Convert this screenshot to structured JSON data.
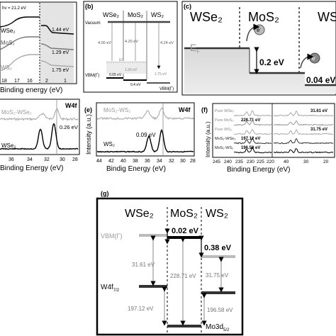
{
  "panel_a": {
    "tag": "hv = 21.2 eV",
    "xlabel": "Binding energy (eV)",
    "ticks": [
      "18",
      "17",
      "16",
      "2",
      "1"
    ],
    "curve_labels": [
      "WSe₂",
      "MoS₂",
      "WS₂"
    ],
    "values": [
      "1.44 eV",
      "1.29 eV",
      "1.75 eV"
    ]
  },
  "panel_b": {
    "label": "(b)",
    "cols": [
      "WSe₂",
      "MoS₂",
      "WS₂"
    ],
    "vacuum": "Vacuum",
    "wf": [
      "4.00 eV",
      "4.20 eV",
      "4.24 eV"
    ],
    "vbm_left": "VBM(Γ)",
    "vbm_right": "VBM(Γ)",
    "ef": "Ef",
    "offsets": [
      "0.05 eV",
      "0.4 eV"
    ],
    "vb_values": [
      "1.30 eV",
      "1.75 eV"
    ]
  },
  "panel_c": {
    "label": "(c)",
    "cols": [
      "WSe₂",
      "MoS₂",
      "WS₂"
    ],
    "ef": "E",
    "ef_sub": "F",
    "electron": "e",
    "electron_sup": "-",
    "offsets": [
      "0.2 eV",
      "0.04 eV"
    ]
  },
  "panel_d": {
    "title": "W4f",
    "top_label": "MoS₂-WSe₂",
    "bottom_label": "WSe₂",
    "shift": "0.26 eV",
    "xlabel": "Binding Energy (eV)",
    "ticks": [
      "36",
      "34",
      "32",
      "30",
      "28"
    ]
  },
  "panel_e": {
    "label": "(e)",
    "title": "W4f",
    "top_label": "MoS₂-WS₂",
    "bottom_label": "WS₂",
    "shift": "0.09 eV",
    "ylabel": "Intensity (a.u.)",
    "xlabel": "Bindig Energy (eV)",
    "ticks": [
      "44",
      "42",
      "40",
      "38",
      "36",
      "34",
      "32",
      "30",
      "28"
    ]
  },
  "panel_f": {
    "label": "(f)",
    "ylabel": "Intensity (a.u.)",
    "xlabel": "Binding Energy (eV)",
    "rows": [
      {
        "name": "Pure WSe₂",
        "value": "31.61 eV"
      },
      {
        "name": "Pure MoS₂",
        "value": "228.71 eV"
      },
      {
        "name": "Pure WS₂",
        "value": "31.75 eV"
      },
      {
        "name": "MoS₂-WSe₂",
        "value": "197.12 eV"
      },
      {
        "name": "MoS₂-WS₂",
        "value": "196.58 eV"
      }
    ],
    "ticks": [
      "245",
      "240",
      "235",
      "230",
      "225",
      "220",
      "40",
      "30",
      "20"
    ]
  },
  "panel_g": {
    "label": "(g)",
    "cols": [
      "WSe₂",
      "MoS₂",
      "WS₂"
    ],
    "vbm": "VBM(Γ)",
    "w4f": "W4f",
    "w4f_sub": "7/2",
    "mo3d": "Mo3d",
    "mo3d_sub": "5/2",
    "offsets": [
      "0.02 eV",
      "0.38 eV"
    ],
    "values": [
      "31.61 eV",
      "228.71 eV",
      "31.75 eV",
      "197.12 eV",
      "196.58 eV"
    ]
  }
}
